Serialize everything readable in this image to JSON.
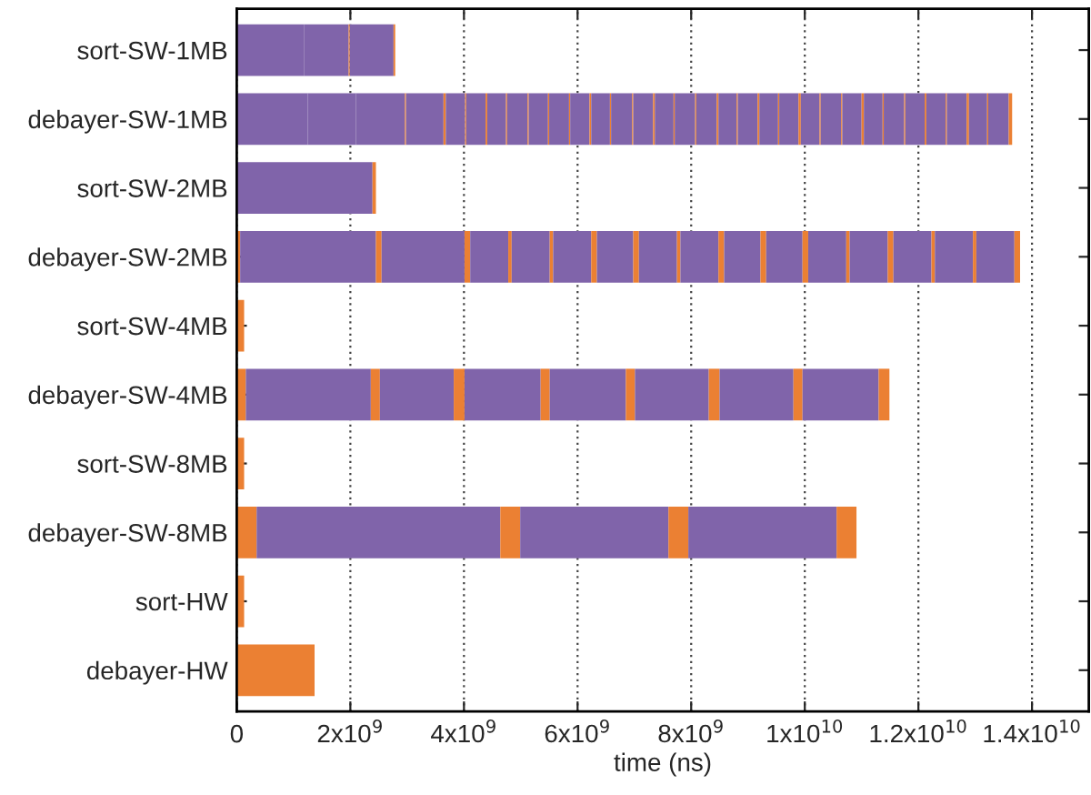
{
  "chart_data": {
    "type": "bar",
    "orientation": "horizontal",
    "stacked": true,
    "xlabel": "time (ns)",
    "categories": [
      "sort-SW-1MB",
      "debayer-SW-1MB",
      "sort-SW-2MB",
      "debayer-SW-2MB",
      "sort-SW-4MB",
      "debayer-SW-4MB",
      "sort-SW-8MB",
      "debayer-SW-8MB",
      "sort-HW",
      "debayer-HW"
    ],
    "xlim": [
      0,
      15000000000.0
    ],
    "xticks": [
      0,
      {
        "value": 2000000000.0,
        "label": "2x10$^{9}$"
      },
      {
        "value": 4000000000.0,
        "label": "4x10$^{9}$"
      },
      {
        "value": 6000000000.0,
        "label": "6x10$^{9}$"
      },
      {
        "value": 8000000000.0,
        "label": "8x10$^{9}$"
      },
      {
        "value": 10000000000.0,
        "label": "1x10$^{10}$"
      },
      {
        "value": 12000000000.0,
        "label": "1.2x10$^{10}$"
      },
      {
        "value": 14000000000.0,
        "label": "1.4x10$^{10}$"
      }
    ],
    "grid": "x",
    "series": [
      {
        "color": "#eb8033",
        "values": [
          null,
          null,
          null,
          60000000.0,
          130000000.0,
          160000000.0,
          130000000.0,
          350000000.0,
          130000000.0,
          1370000000.0
        ]
      },
      {
        "color": "#8064aa",
        "values": [
          1190000000.0,
          1250000000.0,
          2390000000.0,
          2390000000.0,
          null,
          2200000000.0,
          null,
          4290000000.0,
          null,
          null
        ]
      },
      {
        "color": "#eb8033",
        "values": [
          null,
          null,
          60000000.0,
          100000000.0,
          null,
          160000000.0,
          null,
          350000000.0,
          null,
          null
        ]
      },
      {
        "color": "#8064aa",
        "values": [
          780000000.0,
          850000000.0,
          null,
          1460000000.0,
          null,
          1300000000.0,
          null,
          2610000000.0,
          null,
          null
        ]
      },
      {
        "color": "#eb8033",
        "values": [
          20000000.0,
          null,
          null,
          100000000.0,
          null,
          190000000.0,
          null,
          350000000.0,
          null,
          null
        ]
      },
      {
        "color": "#8064aa",
        "values": [
          770000000.0,
          860000000.0,
          null,
          670000000.0,
          null,
          1340000000.0,
          null,
          2610000000.0,
          null,
          null
        ]
      },
      {
        "color": "#eb8033",
        "values": [
          30000000.0,
          20000000.0,
          null,
          60000000.0,
          null,
          160000000.0,
          null,
          350000000.0,
          null,
          null
        ]
      },
      {
        "color": "#8064aa",
        "values": [
          null,
          660000000.0,
          null,
          670000000.0,
          null,
          1340000000.0,
          null,
          null,
          null,
          null
        ]
      },
      {
        "color": "#eb8033",
        "values": [
          null,
          40000000.0,
          null,
          60000000.0,
          null,
          160000000.0,
          null,
          null,
          null,
          null
        ]
      },
      {
        "color": "#8064aa",
        "values": [
          null,
          340000000.0,
          null,
          670000000.0,
          null,
          1300000000.0,
          null,
          null,
          null,
          null
        ]
      },
      {
        "color": "#eb8033",
        "values": [
          null,
          20000000.0,
          null,
          100000000.0,
          null,
          190000000.0,
          null,
          null,
          null,
          null
        ]
      },
      {
        "color": "#8064aa",
        "values": [
          null,
          340000000.0,
          null,
          640000000.0,
          null,
          1300000000.0,
          null,
          null,
          null,
          null
        ]
      },
      {
        "color": "#eb8033",
        "values": [
          null,
          30000000.0,
          null,
          100000000.0,
          null,
          160000000.0,
          null,
          null,
          null,
          null
        ]
      },
      {
        "color": "#8064aa",
        "values": [
          null,
          330000000.0,
          null,
          670000000.0,
          null,
          1340000000.0,
          null,
          null,
          null,
          null
        ]
      },
      {
        "color": "#eb8033",
        "values": [
          null,
          20000000.0,
          null,
          60000000.0,
          null,
          190000000.0,
          null,
          null,
          null,
          null
        ]
      },
      {
        "color": "#8064aa",
        "values": [
          null,
          360000000.0,
          null,
          670000000.0,
          null,
          null,
          null,
          null,
          null,
          null
        ]
      },
      {
        "color": "#eb8033",
        "values": [
          null,
          20000000.0,
          null,
          100000000.0,
          null,
          null,
          null,
          null,
          null,
          null
        ]
      },
      {
        "color": "#8064aa",
        "values": [
          null,
          340000000.0,
          null,
          640000000.0,
          null,
          null,
          null,
          null,
          null,
          null
        ]
      },
      {
        "color": "#eb8033",
        "values": [
          null,
          20000000.0,
          null,
          100000000.0,
          null,
          null,
          null,
          null,
          null,
          null
        ]
      },
      {
        "color": "#8064aa",
        "values": [
          null,
          350000000.0,
          null,
          640000000.0,
          null,
          null,
          null,
          null,
          null,
          null
        ]
      },
      {
        "color": "#eb8033",
        "values": [
          null,
          20000000.0,
          null,
          100000000.0,
          null,
          null,
          null,
          null,
          null,
          null
        ]
      },
      {
        "color": "#8064aa",
        "values": [
          null,
          340000000.0,
          null,
          670000000.0,
          null,
          null,
          null,
          null,
          null,
          null
        ]
      },
      {
        "color": "#eb8033",
        "values": [
          null,
          30000000.0,
          null,
          60000000.0,
          null,
          null,
          null,
          null,
          null,
          null
        ]
      },
      {
        "color": "#8064aa",
        "values": [
          null,
          330000000.0,
          null,
          670000000.0,
          null,
          null,
          null,
          null,
          null,
          null
        ]
      },
      {
        "color": "#eb8033",
        "values": [
          null,
          20000000.0,
          null,
          100000000.0,
          null,
          null,
          null,
          null,
          null,
          null
        ]
      },
      {
        "color": "#8064aa",
        "values": [
          null,
          370000000.0,
          null,
          670000000.0,
          null,
          null,
          null,
          null,
          null,
          null
        ]
      },
      {
        "color": "#eb8033",
        "values": [
          null,
          20000000.0,
          null,
          60000000.0,
          null,
          null,
          null,
          null,
          null,
          null
        ]
      },
      {
        "color": "#8064aa",
        "values": [
          null,
          350000000.0,
          null,
          670000000.0,
          null,
          null,
          null,
          null,
          null,
          null
        ]
      },
      {
        "color": "#eb8033",
        "values": [
          null,
          30000000.0,
          null,
          60000000.0,
          null,
          null,
          null,
          null,
          null,
          null
        ]
      },
      {
        "color": "#8064aa",
        "values": [
          null,
          330000000.0,
          null,
          670000000.0,
          null,
          null,
          null,
          null,
          null,
          null
        ]
      },
      {
        "color": "#eb8033",
        "values": [
          null,
          20000000.0,
          null,
          100000000.0,
          null,
          null,
          null,
          null,
          null,
          null
        ]
      },
      {
        "color": "#8064aa",
        "values": [
          null,
          360000000.0,
          null,
          null,
          null,
          null,
          null,
          null,
          null,
          null
        ]
      },
      {
        "color": "#eb8033",
        "values": [
          null,
          20000000.0,
          null,
          null,
          null,
          null,
          null,
          null,
          null,
          null
        ]
      },
      {
        "color": "#8064aa",
        "values": [
          null,
          360000000.0,
          null,
          null,
          null,
          null,
          null,
          null,
          null,
          null
        ]
      },
      {
        "color": "#eb8033",
        "values": [
          null,
          30000000.0,
          null,
          null,
          null,
          null,
          null,
          null,
          null,
          null
        ]
      },
      {
        "color": "#8064aa",
        "values": [
          null,
          320000000.0,
          null,
          null,
          null,
          null,
          null,
          null,
          null,
          null
        ]
      },
      {
        "color": "#eb8033",
        "values": [
          null,
          20000000.0,
          null,
          null,
          null,
          null,
          null,
          null,
          null,
          null
        ]
      },
      {
        "color": "#8064aa",
        "values": [
          null,
          350000000.0,
          null,
          null,
          null,
          null,
          null,
          null,
          null,
          null
        ]
      },
      {
        "color": "#eb8033",
        "values": [
          null,
          30000000.0,
          null,
          null,
          null,
          null,
          null,
          null,
          null,
          null
        ]
      },
      {
        "color": "#8064aa",
        "values": [
          null,
          330000000.0,
          null,
          null,
          null,
          null,
          null,
          null,
          null,
          null
        ]
      },
      {
        "color": "#eb8033",
        "values": [
          null,
          20000000.0,
          null,
          null,
          null,
          null,
          null,
          null,
          null,
          null
        ]
      },
      {
        "color": "#8064aa",
        "values": [
          null,
          340000000.0,
          null,
          null,
          null,
          null,
          null,
          null,
          null,
          null
        ]
      },
      {
        "color": "#eb8033",
        "values": [
          null,
          40000000.0,
          null,
          null,
          null,
          null,
          null,
          null,
          null,
          null
        ]
      },
      {
        "color": "#8064aa",
        "values": [
          null,
          330000000.0,
          null,
          null,
          null,
          null,
          null,
          null,
          null,
          null
        ]
      },
      {
        "color": "#eb8033",
        "values": [
          null,
          20000000.0,
          null,
          null,
          null,
          null,
          null,
          null,
          null,
          null
        ]
      },
      {
        "color": "#8064aa",
        "values": [
          null,
          360000000.0,
          null,
          null,
          null,
          null,
          null,
          null,
          null,
          null
        ]
      },
      {
        "color": "#eb8033",
        "values": [
          null,
          20000000.0,
          null,
          null,
          null,
          null,
          null,
          null,
          null,
          null
        ]
      },
      {
        "color": "#8064aa",
        "values": [
          null,
          340000000.0,
          null,
          null,
          null,
          null,
          null,
          null,
          null,
          null
        ]
      },
      {
        "color": "#eb8033",
        "values": [
          null,
          40000000.0,
          null,
          null,
          null,
          null,
          null,
          null,
          null,
          null
        ]
      },
      {
        "color": "#8064aa",
        "values": [
          null,
          330000000.0,
          null,
          null,
          null,
          null,
          null,
          null,
          null,
          null
        ]
      },
      {
        "color": "#eb8033",
        "values": [
          null,
          20000000.0,
          null,
          null,
          null,
          null,
          null,
          null,
          null,
          null
        ]
      },
      {
        "color": "#8064aa",
        "values": [
          null,
          360000000.0,
          null,
          null,
          null,
          null,
          null,
          null,
          null,
          null
        ]
      },
      {
        "color": "#eb8033",
        "values": [
          null,
          20000000.0,
          null,
          null,
          null,
          null,
          null,
          null,
          null,
          null
        ]
      },
      {
        "color": "#8064aa",
        "values": [
          null,
          340000000.0,
          null,
          null,
          null,
          null,
          null,
          null,
          null,
          null
        ]
      },
      {
        "color": "#eb8033",
        "values": [
          null,
          30000000.0,
          null,
          null,
          null,
          null,
          null,
          null,
          null,
          null
        ]
      },
      {
        "color": "#8064aa",
        "values": [
          null,
          340000000.0,
          null,
          null,
          null,
          null,
          null,
          null,
          null,
          null
        ]
      },
      {
        "color": "#eb8033",
        "values": [
          null,
          20000000.0,
          null,
          null,
          null,
          null,
          null,
          null,
          null,
          null
        ]
      },
      {
        "color": "#8064aa",
        "values": [
          null,
          350000000.0,
          null,
          null,
          null,
          null,
          null,
          null,
          null,
          null
        ]
      },
      {
        "color": "#eb8033",
        "values": [
          null,
          40000000.0,
          null,
          null,
          null,
          null,
          null,
          null,
          null,
          null
        ]
      },
      {
        "color": "#8064aa",
        "values": [
          null,
          320000000.0,
          null,
          null,
          null,
          null,
          null,
          null,
          null,
          null
        ]
      },
      {
        "color": "#eb8033",
        "values": [
          null,
          20000000.0,
          null,
          null,
          null,
          null,
          null,
          null,
          null,
          null
        ]
      },
      {
        "color": "#8064aa",
        "values": [
          null,
          360000000.0,
          null,
          null,
          null,
          null,
          null,
          null,
          null,
          null
        ]
      },
      {
        "color": "#eb8033",
        "values": [
          null,
          60000000.0,
          null,
          null,
          null,
          null,
          null,
          null,
          null,
          null
        ]
      }
    ]
  }
}
